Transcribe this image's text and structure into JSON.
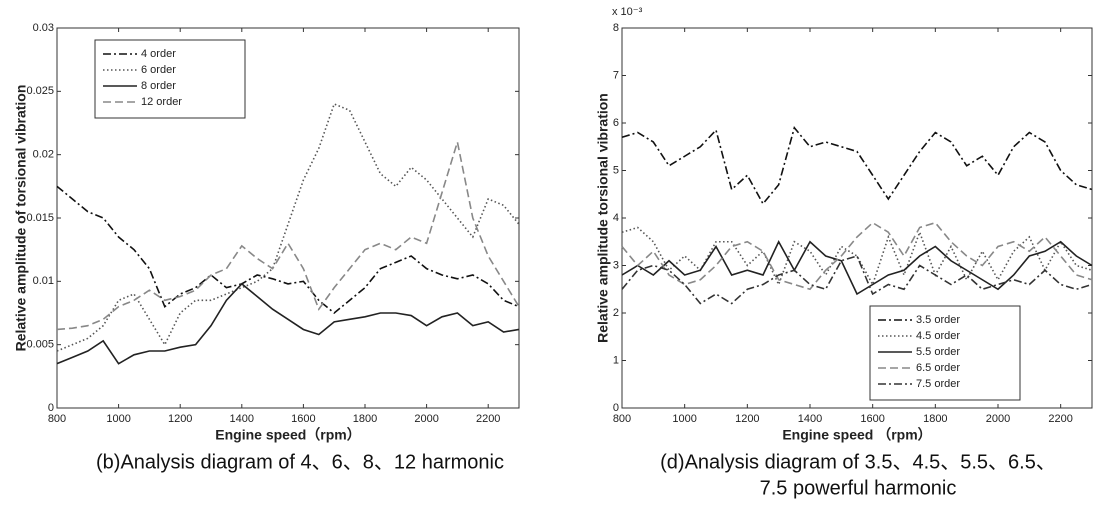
{
  "chart_data": [
    {
      "type": "line",
      "caption": [
        "(b)Analysis diagram of 4、6、8、12 harmonic"
      ],
      "ylabel": "Relative amplitude of torsional vibration",
      "xlabel": "Engine speed（rpm）",
      "xlim": [
        800,
        2300
      ],
      "xticks": [
        800,
        1000,
        1200,
        1400,
        1600,
        1800,
        2000,
        2200
      ],
      "ylim": [
        0,
        0.03
      ],
      "yticks": [
        0,
        0.005,
        0.01,
        0.015,
        0.02,
        0.025,
        0.03
      ],
      "legend": "upper left",
      "x": [
        800,
        850,
        900,
        950,
        1000,
        1050,
        1100,
        1150,
        1200,
        1250,
        1300,
        1350,
        1400,
        1450,
        1500,
        1550,
        1600,
        1650,
        1700,
        1750,
        1800,
        1850,
        1900,
        1950,
        2000,
        2050,
        2100,
        2150,
        2200,
        2250,
        2300
      ],
      "series": [
        {
          "name": "4 order",
          "color": "#111111",
          "style": "dashdot",
          "values": [
            0.0175,
            0.0165,
            0.0155,
            0.015,
            0.0135,
            0.0125,
            0.011,
            0.008,
            0.009,
            0.0095,
            0.0105,
            0.0095,
            0.0098,
            0.0105,
            0.0102,
            0.0098,
            0.01,
            0.0085,
            0.0075,
            0.0085,
            0.0095,
            0.011,
            0.0115,
            0.012,
            0.011,
            0.0105,
            0.0102,
            0.0105,
            0.0098,
            0.0085,
            0.008
          ]
        },
        {
          "name": "6 order",
          "color": "#555555",
          "style": "dotted",
          "values": [
            0.0045,
            0.005,
            0.0055,
            0.0065,
            0.0085,
            0.009,
            0.007,
            0.005,
            0.0075,
            0.0085,
            0.0085,
            0.009,
            0.0095,
            0.01,
            0.011,
            0.0145,
            0.018,
            0.0205,
            0.024,
            0.0235,
            0.021,
            0.0185,
            0.0175,
            0.019,
            0.018,
            0.0165,
            0.015,
            0.0135,
            0.0165,
            0.016,
            0.0145
          ]
        },
        {
          "name": "8 order",
          "color": "#222222",
          "style": "solid",
          "values": [
            0.0035,
            0.004,
            0.0045,
            0.0053,
            0.0035,
            0.0042,
            0.0045,
            0.0045,
            0.0048,
            0.005,
            0.0065,
            0.0085,
            0.0098,
            0.0088,
            0.0078,
            0.007,
            0.0062,
            0.0058,
            0.0068,
            0.007,
            0.0072,
            0.0075,
            0.0075,
            0.0073,
            0.0065,
            0.0072,
            0.0075,
            0.0065,
            0.0068,
            0.006,
            0.0062
          ]
        },
        {
          "name": "12 order",
          "color": "#888888",
          "style": "dashed",
          "values": [
            0.0062,
            0.0063,
            0.0065,
            0.007,
            0.008,
            0.0085,
            0.0093,
            0.0085,
            0.0088,
            0.0093,
            0.0105,
            0.011,
            0.0128,
            0.0118,
            0.011,
            0.013,
            0.011,
            0.0078,
            0.0095,
            0.011,
            0.0125,
            0.013,
            0.0125,
            0.0135,
            0.013,
            0.017,
            0.021,
            0.015,
            0.012,
            0.01,
            0.008
          ]
        }
      ]
    },
    {
      "type": "line",
      "caption": [
        "(d)Analysis diagram of 3.5、4.5、5.5、6.5、",
        "7.5 powerful harmonic"
      ],
      "ylabel": "Relative amplitude torsional vibration",
      "xlabel": "Engine speed （rpm）",
      "y_multiplier": "x 10⁻³",
      "xlim": [
        800,
        2300
      ],
      "xticks": [
        800,
        1000,
        1200,
        1400,
        1600,
        1800,
        2000,
        2200
      ],
      "ylim": [
        0,
        8
      ],
      "yticks": [
        0,
        1,
        2,
        3,
        4,
        5,
        6,
        7,
        8
      ],
      "legend": "lower right",
      "x": [
        800,
        850,
        900,
        950,
        1000,
        1050,
        1100,
        1150,
        1200,
        1250,
        1300,
        1350,
        1400,
        1450,
        1500,
        1550,
        1600,
        1650,
        1700,
        1750,
        1800,
        1850,
        1900,
        1950,
        2000,
        2050,
        2100,
        2150,
        2200,
        2250,
        2300
      ],
      "series": [
        {
          "name": "3.5 order",
          "color": "#111111",
          "style": "dashdot",
          "values": [
            5.7,
            5.8,
            5.6,
            5.1,
            5.3,
            5.5,
            5.85,
            4.6,
            4.9,
            4.3,
            4.7,
            5.9,
            5.5,
            5.6,
            5.5,
            5.4,
            4.9,
            4.4,
            4.9,
            5.4,
            5.8,
            5.6,
            5.1,
            5.3,
            4.9,
            5.5,
            5.8,
            5.6,
            5.0,
            4.7,
            4.6
          ]
        },
        {
          "name": "4.5 order",
          "color": "#555555",
          "style": "dotted",
          "values": [
            3.7,
            3.8,
            3.5,
            2.9,
            3.2,
            2.9,
            3.5,
            3.5,
            3.0,
            3.3,
            2.6,
            3.5,
            3.3,
            2.8,
            3.4,
            3.2,
            2.6,
            3.6,
            2.8,
            3.7,
            2.8,
            3.4,
            2.7,
            3.3,
            2.7,
            3.3,
            3.6,
            2.9,
            3.5,
            3.0,
            2.9
          ]
        },
        {
          "name": "5.5 order",
          "color": "#222222",
          "style": "solid",
          "values": [
            2.8,
            3.0,
            2.8,
            3.1,
            2.8,
            2.9,
            3.4,
            2.8,
            2.9,
            2.8,
            3.5,
            2.9,
            3.5,
            3.2,
            3.1,
            2.4,
            2.6,
            2.8,
            2.9,
            3.2,
            3.4,
            3.1,
            2.9,
            2.7,
            2.5,
            2.8,
            3.2,
            3.3,
            3.5,
            3.2,
            3.0
          ]
        },
        {
          "name": "6.5 order",
          "color": "#888888",
          "style": "dashed",
          "values": [
            3.4,
            3.0,
            3.3,
            2.8,
            2.6,
            2.7,
            3.0,
            3.4,
            3.5,
            3.3,
            2.7,
            2.6,
            2.5,
            2.9,
            3.2,
            3.6,
            3.9,
            3.7,
            3.2,
            3.8,
            3.9,
            3.5,
            3.2,
            3.0,
            3.4,
            3.5,
            3.3,
            3.6,
            3.2,
            2.8,
            2.7
          ]
        },
        {
          "name": "7.5 order",
          "color": "#333333",
          "style": "dashdot",
          "values": [
            2.5,
            2.9,
            3.0,
            2.9,
            2.6,
            2.2,
            2.4,
            2.2,
            2.5,
            2.6,
            2.8,
            2.9,
            2.6,
            2.5,
            3.1,
            3.2,
            2.4,
            2.6,
            2.5,
            3.0,
            2.8,
            2.6,
            2.8,
            2.5,
            2.6,
            2.7,
            2.6,
            2.9,
            2.6,
            2.5,
            2.6
          ]
        }
      ]
    }
  ]
}
